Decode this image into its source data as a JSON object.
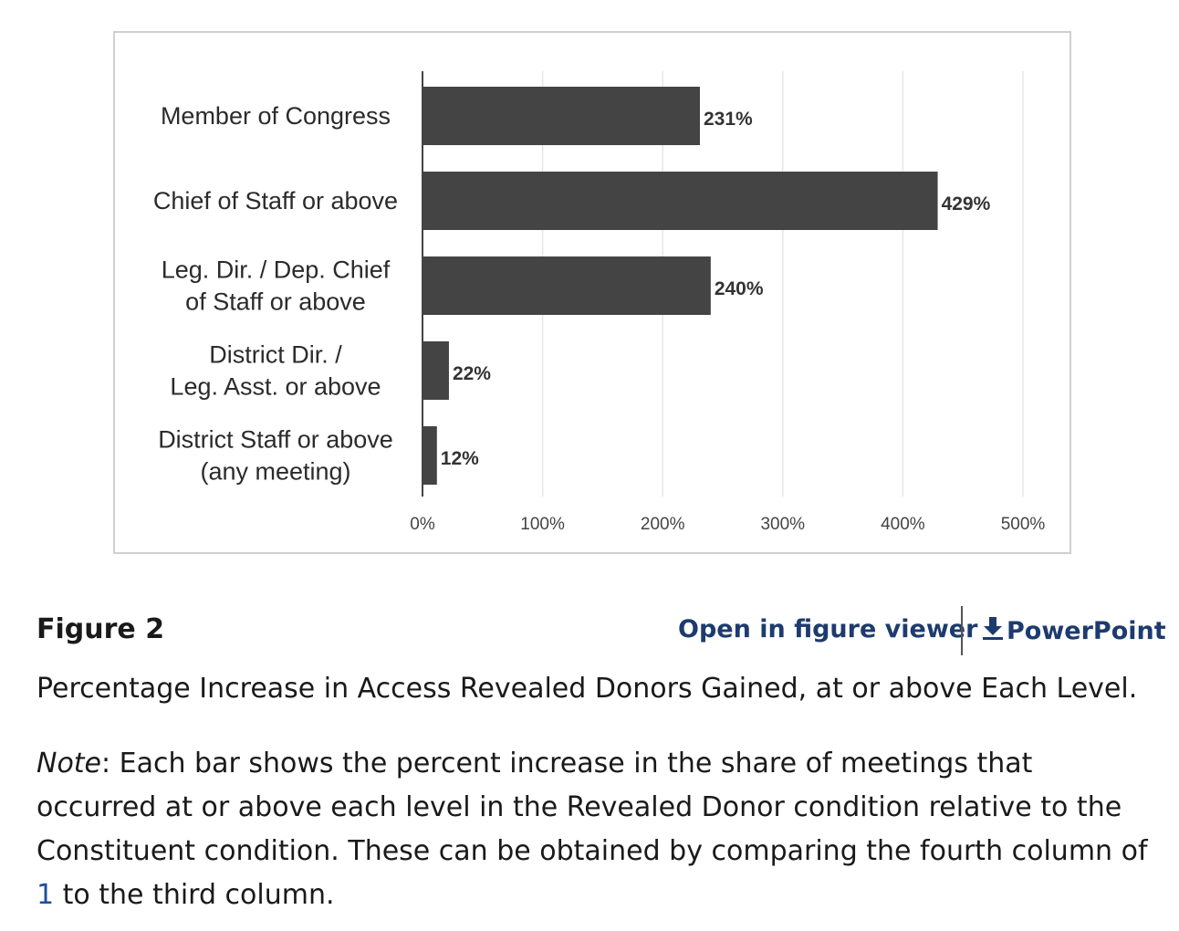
{
  "chart_data": {
    "type": "bar",
    "orientation": "horizontal",
    "categories": [
      [
        "Member of Congress"
      ],
      [
        "Chief of Staff or above"
      ],
      [
        "Leg. Dir. / Dep. Chief",
        "of Staff or above"
      ],
      [
        "District Dir. /",
        "Leg. Asst. or above"
      ],
      [
        "District Staff or above",
        "(any meeting)"
      ]
    ],
    "values": [
      231,
      429,
      240,
      22,
      12
    ],
    "value_labels": [
      "231%",
      "429%",
      "240%",
      "22%",
      "12%"
    ],
    "xlim": [
      0,
      500
    ],
    "xticks": [
      0,
      100,
      200,
      300,
      400,
      500
    ],
    "xtick_labels": [
      "0%",
      "100%",
      "200%",
      "300%",
      "400%",
      "500%"
    ],
    "grid": true,
    "bar_color": "#444444"
  },
  "caption": {
    "figure_label": "Figure 2",
    "open_viewer": "Open in figure viewer",
    "powerpoint": "PowerPoint",
    "title": "Percentage Increase in Access Revealed Donors Gained, at or above Each Level.",
    "note_label": "Note",
    "note_text_1": ": Each bar shows the percent increase in the share of meetings that occurred at or above each level in the Revealed Donor condition relative to the Constituent condition. These can be obtained by comparing the fourth column of ",
    "note_ref": "1",
    "note_text_2": " to the third column."
  },
  "icons": {
    "download": "download-arrow-icon"
  },
  "colors": {
    "link": "#1d3b6e",
    "ref_link": "#1d4f9c"
  }
}
